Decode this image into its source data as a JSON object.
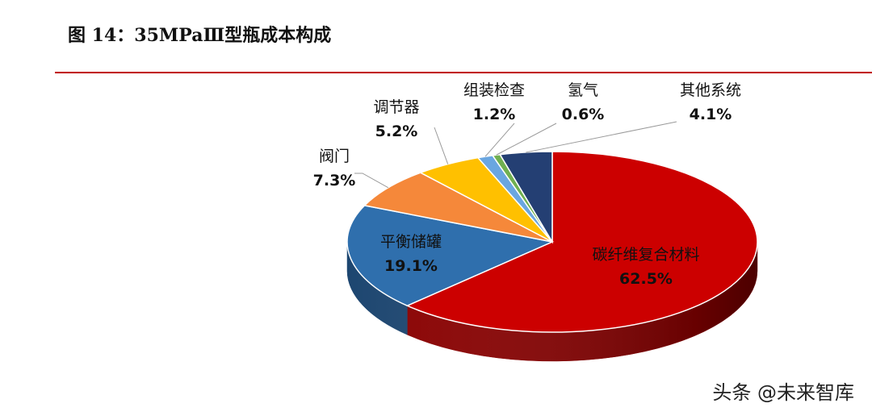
{
  "title": "图 14：35MPaⅢ型瓶成本构成",
  "watermark": "头条 @未来智库",
  "colors": {
    "accent_rule": "#c00000"
  },
  "chart_data": {
    "type": "pie",
    "style": "3d",
    "slices": [
      {
        "name": "碳纤维复合材料",
        "value": 62.5,
        "label": "62.5%",
        "color": "#cc0000",
        "side": "#8a0000"
      },
      {
        "name": "平衡储罐",
        "value": 19.1,
        "label": "19.1%",
        "color": "#2f6fad",
        "side": "#1d4670"
      },
      {
        "name": "阀门",
        "value": 7.3,
        "label": "7.3%",
        "color": "#f5883a",
        "side": "#b8601f"
      },
      {
        "name": "调节器",
        "value": 5.2,
        "label": "5.2%",
        "color": "#ffc000",
        "side": "#b58800"
      },
      {
        "name": "组装检查",
        "value": 1.2,
        "label": "1.2%",
        "color": "#6aa6e0",
        "side": "#3e76ad"
      },
      {
        "name": "氢气",
        "value": 0.6,
        "label": "0.6%",
        "color": "#70b050",
        "side": "#4a7a33"
      },
      {
        "name": "其他系统",
        "value": 4.1,
        "label": "4.1%",
        "color": "#243f73",
        "side": "#142648"
      }
    ]
  }
}
